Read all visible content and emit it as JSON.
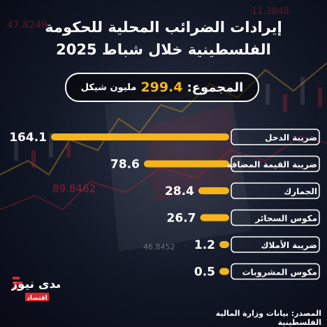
{
  "header": {
    "title_line1": "إيرادات الضرائب المحلية للحكومة",
    "title_line2": "الفلسطينية خلال شباط 2025"
  },
  "total": {
    "label": "المجموع:",
    "value": "299.4",
    "unit": "مليون شيكل"
  },
  "source": "المصدر: بيانات وزارة المالية الفلسطينية",
  "logo": {
    "text": "صدى نيوز",
    "sub": "اقتصاد"
  },
  "background_numbers": [
    "47.8249",
    "89.8462",
    "46.8452",
    "11.3848"
  ],
  "colors": {
    "bar": "#f4b41a",
    "text": "#ffffff",
    "accent_red": "#e2232a"
  },
  "chart_data": {
    "type": "bar",
    "orientation": "horizontal",
    "categories": [
      "ضريبة الدخل",
      "ضريبة القيمة المضافة",
      "الجمارك",
      "مكوس السجائر",
      "ضريبة الأملاك",
      "مكوس المشروبات"
    ],
    "values": [
      164.1,
      78.6,
      28.4,
      26.7,
      1.2,
      0.5
    ],
    "value_labels": [
      "164.1",
      "78.6",
      "28.4",
      "26.7",
      "1.2",
      "0.5"
    ]
  }
}
